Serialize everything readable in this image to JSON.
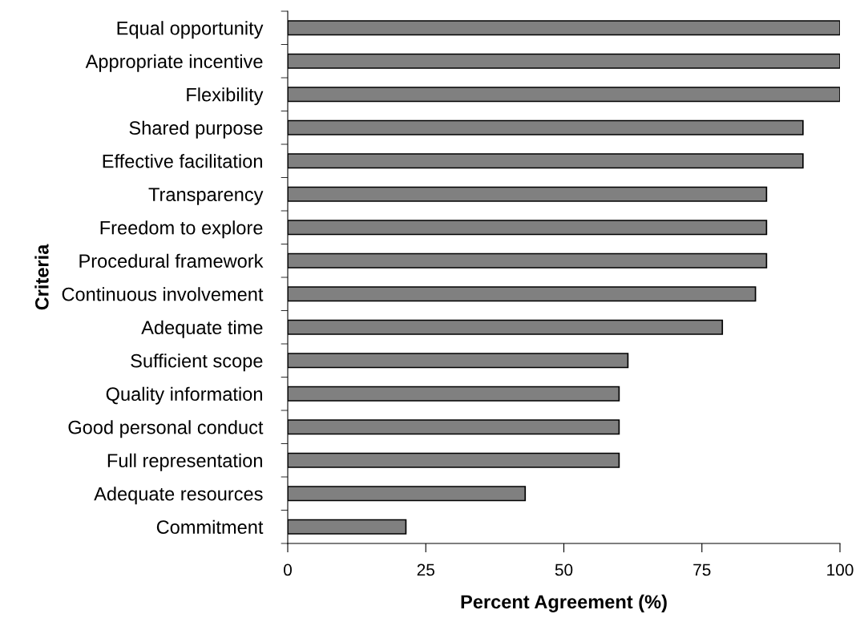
{
  "chart_data": {
    "type": "bar",
    "orientation": "horizontal",
    "xlabel": "Percent Agreement (%)",
    "ylabel": "Criteria",
    "categories": [
      "Equal opportunity",
      "Appropriate incentive",
      "Flexibility",
      "Shared purpose",
      "Effective facilitation",
      "Transparency",
      "Freedom to explore",
      "Procedural framework",
      "Continuous involvement",
      "Adequate time",
      "Sufficient scope",
      "Quality information",
      "Good personal conduct",
      "Full representation",
      "Adequate resources",
      "Commitment"
    ],
    "values": [
      100,
      100,
      100,
      93.3,
      93.3,
      86.7,
      86.7,
      86.7,
      84.7,
      78.7,
      61.6,
      60,
      60,
      60,
      43,
      21.4
    ],
    "color": "#808080",
    "xlim": [
      0,
      100
    ],
    "xticks": [
      0,
      25,
      50,
      75,
      100
    ],
    "grid": false,
    "legend": false
  }
}
